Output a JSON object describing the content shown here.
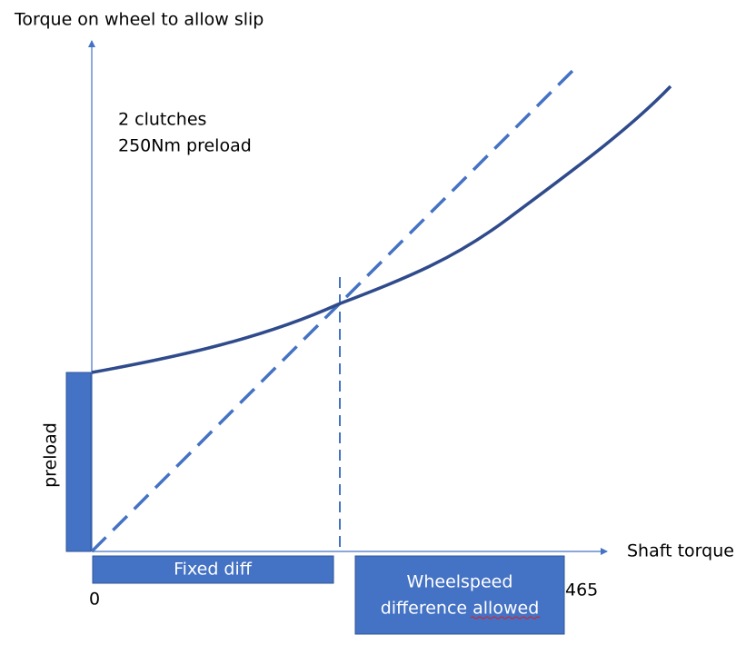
{
  "axis_labels": {
    "y": "Torque on wheel  to allow slip",
    "x": "Shaft torque"
  },
  "annotation": [
    "2 clutches",
    "250Nm preload"
  ],
  "preload_label": "preload",
  "boxes": {
    "fixed_diff": "Fixed diff",
    "wheelspeed": [
      "Wheelspeed",
      "difference allowed"
    ]
  },
  "tick_labels": {
    "start": "0",
    "end": "465"
  }
}
